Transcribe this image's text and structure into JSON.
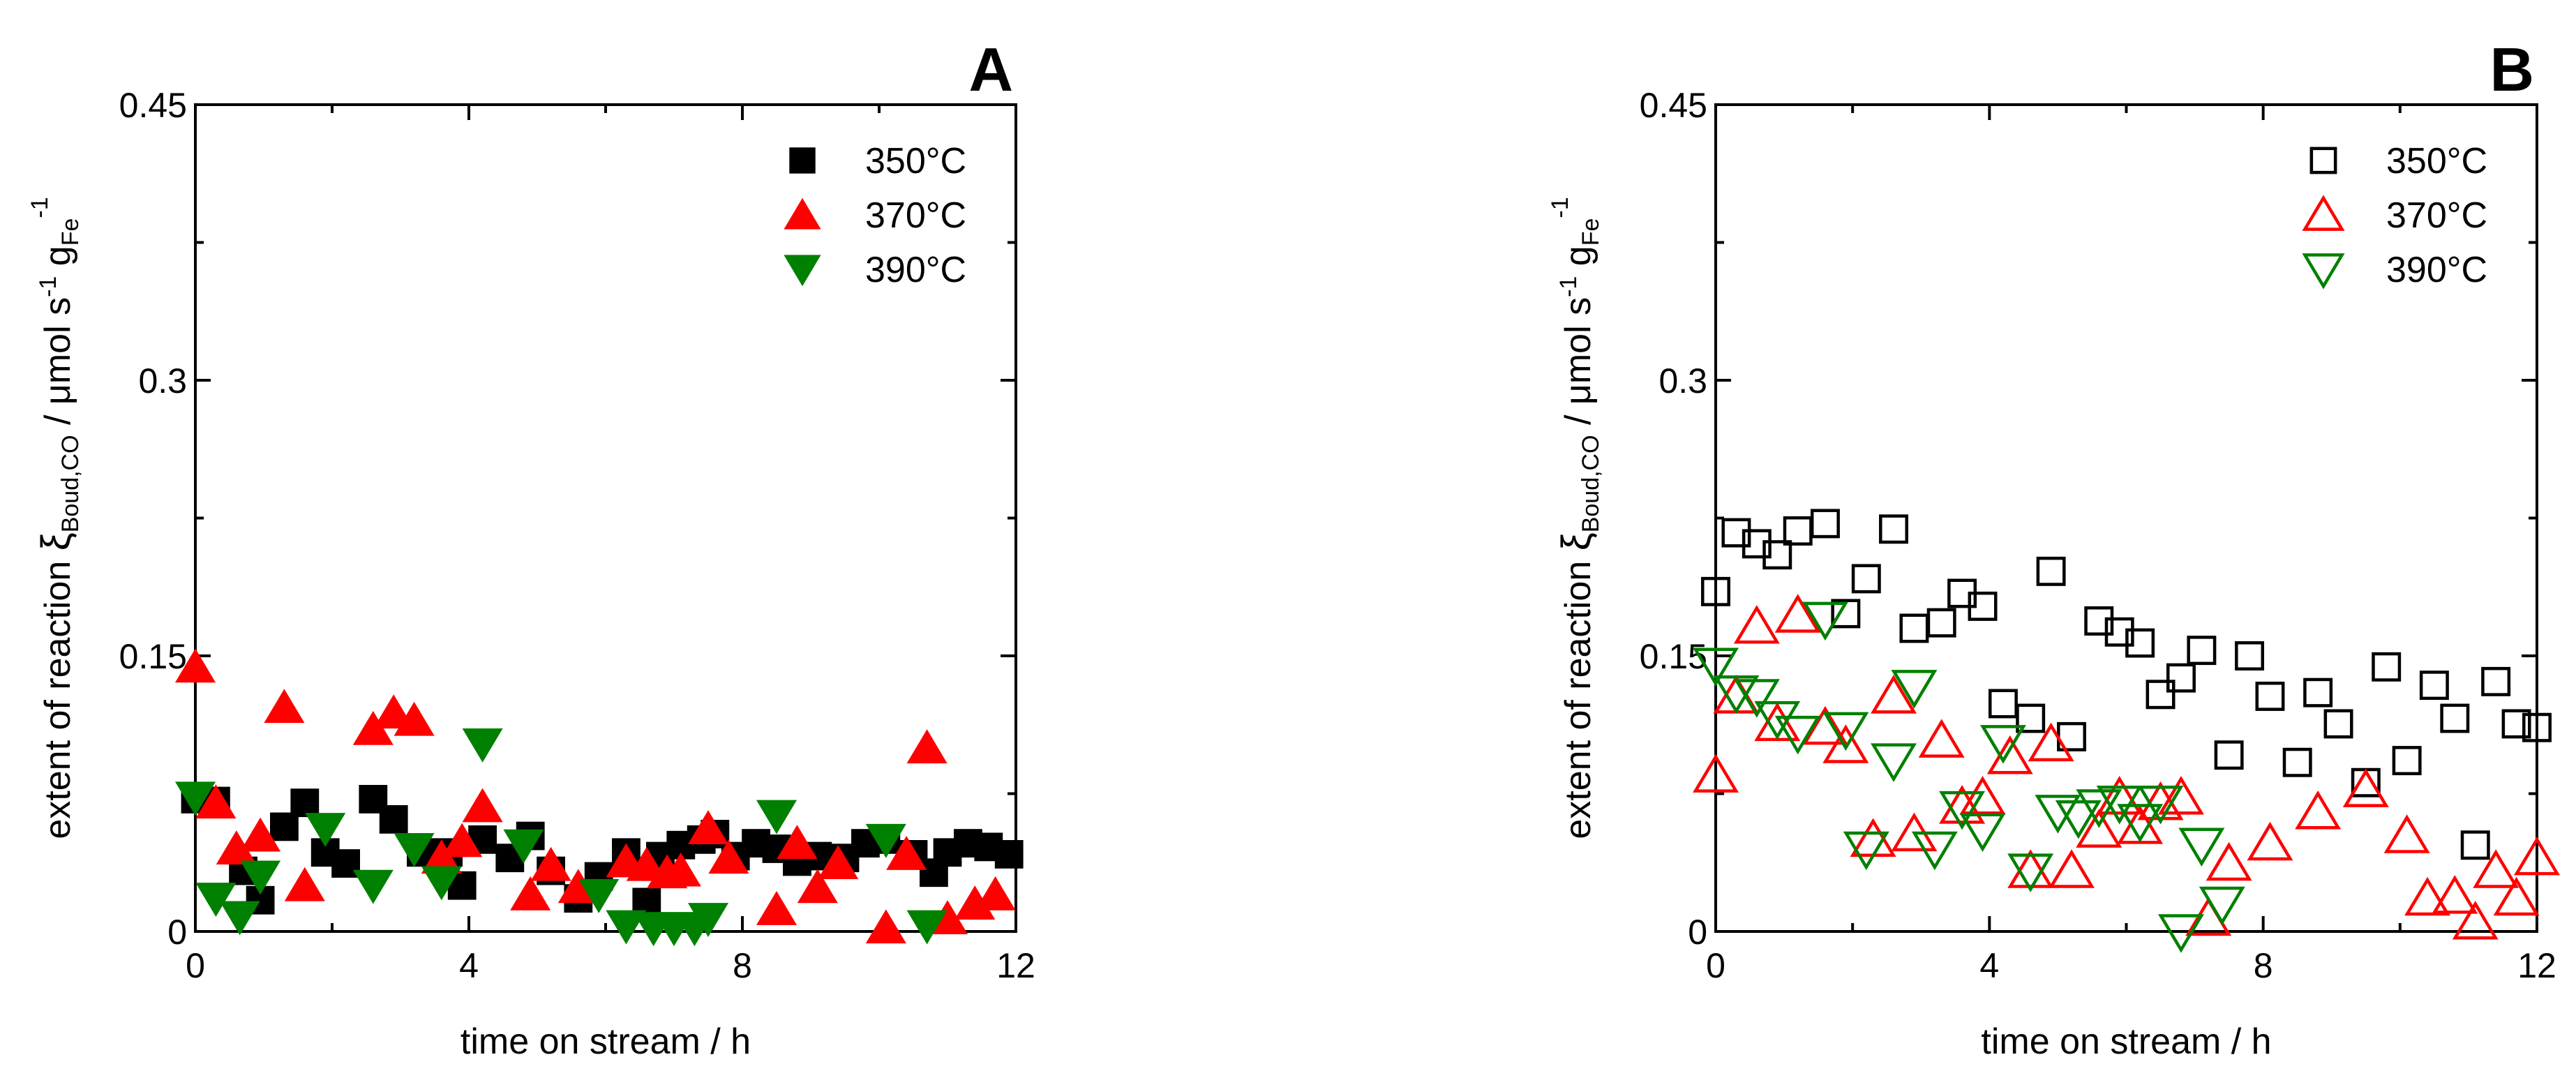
{
  "chart_data": [
    {
      "type": "scatter",
      "panel_label": "A",
      "xlabel": "time on stream / h",
      "ylabel": {
        "main": "extent of reaction ",
        "symbol": "ξ",
        "symbol_sub": "Boud,CO",
        "unit_a": " / μmol s",
        "unit_exp_a": "-1",
        "unit_b": " g",
        "unit_sub_b": "Fe",
        "unit_exp_b": "-1"
      },
      "xlim": [
        0,
        12
      ],
      "ylim": [
        0,
        0.45
      ],
      "xticks": [
        0,
        4,
        8,
        12
      ],
      "xticklabels": [
        "0",
        "4",
        "8",
        "12"
      ],
      "yticks": [
        0,
        0.15,
        0.3,
        0.45
      ],
      "yticklabels": [
        "0",
        "0.15",
        "0.3",
        "0.45"
      ],
      "legend_position": "top-right",
      "filled": true,
      "series": [
        {
          "name": "350°C",
          "marker": "square",
          "color": "#000000",
          "points": [
            [
              0,
              0.072
            ],
            [
              0.3,
              0.071
            ],
            [
              0.7,
              0.033
            ],
            [
              0.95,
              0.017
            ],
            [
              1.3,
              0.057
            ],
            [
              1.6,
              0.07
            ],
            [
              1.9,
              0.043
            ],
            [
              2.2,
              0.037
            ],
            [
              2.6,
              0.072
            ],
            [
              2.9,
              0.061
            ],
            [
              3.3,
              0.043
            ],
            [
              3.7,
              0.043
            ],
            [
              3.9,
              0.025
            ],
            [
              4.2,
              0.05
            ],
            [
              4.6,
              0.04
            ],
            [
              4.9,
              0.052
            ],
            [
              5.2,
              0.033
            ],
            [
              5.6,
              0.018
            ],
            [
              5.9,
              0.03
            ],
            [
              6.3,
              0.043
            ],
            [
              6.6,
              0.016
            ],
            [
              6.8,
              0.041
            ],
            [
              7.1,
              0.047
            ],
            [
              7.4,
              0.05
            ],
            [
              7.6,
              0.053
            ],
            [
              7.9,
              0.041
            ],
            [
              8.2,
              0.048
            ],
            [
              8.5,
              0.045
            ],
            [
              8.8,
              0.038
            ],
            [
              9.1,
              0.041
            ],
            [
              9.5,
              0.04
            ],
            [
              9.8,
              0.048
            ],
            [
              10.1,
              0.05
            ],
            [
              10.5,
              0.042
            ],
            [
              10.8,
              0.032
            ],
            [
              11.0,
              0.043
            ],
            [
              11.3,
              0.048
            ],
            [
              11.6,
              0.046
            ],
            [
              11.9,
              0.042
            ]
          ]
        },
        {
          "name": "370°C",
          "marker": "triangle-up",
          "color": "#ff0000",
          "points": [
            [
              0,
              0.144
            ],
            [
              0.3,
              0.07
            ],
            [
              0.6,
              0.045
            ],
            [
              0.95,
              0.052
            ],
            [
              1.3,
              0.122
            ],
            [
              1.6,
              0.025
            ],
            [
              2.6,
              0.11
            ],
            [
              2.9,
              0.119
            ],
            [
              3.2,
              0.115
            ],
            [
              3.6,
              0.04
            ],
            [
              3.9,
              0.049
            ],
            [
              4.2,
              0.068
            ],
            [
              4.9,
              0.02
            ],
            [
              5.2,
              0.036
            ],
            [
              5.6,
              0.024
            ],
            [
              6.3,
              0.038
            ],
            [
              6.6,
              0.036
            ],
            [
              6.9,
              0.032
            ],
            [
              7.1,
              0.033
            ],
            [
              7.5,
              0.056
            ],
            [
              7.8,
              0.04
            ],
            [
              8.5,
              0.012
            ],
            [
              8.8,
              0.048
            ],
            [
              9.1,
              0.024
            ],
            [
              9.4,
              0.037
            ],
            [
              10.1,
              0.002
            ],
            [
              10.4,
              0.042
            ],
            [
              10.7,
              0.1
            ],
            [
              11.0,
              0.007
            ],
            [
              11.4,
              0.015
            ],
            [
              11.7,
              0.02
            ]
          ]
        },
        {
          "name": "390°C",
          "marker": "triangle-down",
          "color": "#008000",
          "points": [
            [
              0,
              0.073
            ],
            [
              0.3,
              0.018
            ],
            [
              0.65,
              0.008
            ],
            [
              0.95,
              0.03
            ],
            [
              1.9,
              0.056
            ],
            [
              2.6,
              0.025
            ],
            [
              3.2,
              0.045
            ],
            [
              3.6,
              0.027
            ],
            [
              4.2,
              0.102
            ],
            [
              4.8,
              0.047
            ],
            [
              5.9,
              0.02
            ],
            [
              6.3,
              0.003
            ],
            [
              6.7,
              0.002
            ],
            [
              7.0,
              0.002
            ],
            [
              7.3,
              0.002
            ],
            [
              7.5,
              0.007
            ],
            [
              8.5,
              0.063
            ],
            [
              10.1,
              0.05
            ],
            [
              10.7,
              0.003
            ]
          ]
        }
      ]
    },
    {
      "type": "scatter",
      "panel_label": "B",
      "xlabel": "time on stream / h",
      "ylabel": {
        "main": "extent of reaction ",
        "symbol": "ξ",
        "symbol_sub": "Boud,CO",
        "unit_a": " / μmol s",
        "unit_exp_a": "-1",
        "unit_b": " g",
        "unit_sub_b": "Fe",
        "unit_exp_b": "-1"
      },
      "xlim": [
        0,
        12
      ],
      "ylim": [
        0,
        0.45
      ],
      "xticks": [
        0,
        4,
        8,
        12
      ],
      "xticklabels": [
        "0",
        "4",
        "8",
        "12"
      ],
      "yticks": [
        0,
        0.15,
        0.3,
        0.45
      ],
      "yticklabels": [
        "0",
        "0.15",
        "0.3",
        "0.45"
      ],
      "legend_position": "top-right",
      "filled": false,
      "series": [
        {
          "name": "350°C",
          "marker": "square",
          "color": "#000000",
          "points": [
            [
              0,
              0.185
            ],
            [
              0.3,
              0.217
            ],
            [
              0.6,
              0.211
            ],
            [
              0.9,
              0.205
            ],
            [
              1.2,
              0.218
            ],
            [
              1.6,
              0.222
            ],
            [
              1.9,
              0.173
            ],
            [
              2.2,
              0.192
            ],
            [
              2.6,
              0.219
            ],
            [
              2.9,
              0.165
            ],
            [
              3.3,
              0.168
            ],
            [
              3.6,
              0.184
            ],
            [
              3.9,
              0.177
            ],
            [
              4.2,
              0.124
            ],
            [
              4.6,
              0.116
            ],
            [
              4.9,
              0.196
            ],
            [
              5.2,
              0.106
            ],
            [
              5.6,
              0.169
            ],
            [
              5.9,
              0.163
            ],
            [
              6.2,
              0.157
            ],
            [
              6.5,
              0.129
            ],
            [
              6.8,
              0.138
            ],
            [
              7.1,
              0.153
            ],
            [
              7.5,
              0.096
            ],
            [
              7.8,
              0.15
            ],
            [
              8.1,
              0.128
            ],
            [
              8.5,
              0.092
            ],
            [
              8.8,
              0.13
            ],
            [
              9.1,
              0.113
            ],
            [
              9.5,
              0.081
            ],
            [
              9.8,
              0.144
            ],
            [
              10.1,
              0.093
            ],
            [
              10.5,
              0.134
            ],
            [
              10.8,
              0.116
            ],
            [
              11.1,
              0.047
            ],
            [
              11.4,
              0.136
            ],
            [
              11.7,
              0.113
            ],
            [
              12.0,
              0.111
            ]
          ]
        },
        {
          "name": "370°C",
          "marker": "triangle-up",
          "color": "#ff0000",
          "points": [
            [
              0,
              0.085
            ],
            [
              0.3,
              0.128
            ],
            [
              0.6,
              0.166
            ],
            [
              0.9,
              0.113
            ],
            [
              1.2,
              0.172
            ],
            [
              1.6,
              0.111
            ],
            [
              1.9,
              0.101
            ],
            [
              2.3,
              0.05
            ],
            [
              2.6,
              0.128
            ],
            [
              2.9,
              0.053
            ],
            [
              3.3,
              0.104
            ],
            [
              3.6,
              0.068
            ],
            [
              3.9,
              0.073
            ],
            [
              4.3,
              0.095
            ],
            [
              4.6,
              0.033
            ],
            [
              4.9,
              0.102
            ],
            [
              5.2,
              0.033
            ],
            [
              5.6,
              0.055
            ],
            [
              5.9,
              0.073
            ],
            [
              6.2,
              0.057
            ],
            [
              6.5,
              0.07
            ],
            [
              6.8,
              0.073
            ],
            [
              7.2,
              0.007
            ],
            [
              7.5,
              0.037
            ],
            [
              8.1,
              0.048
            ],
            [
              8.8,
              0.065
            ],
            [
              9.5,
              0.077
            ],
            [
              10.1,
              0.052
            ],
            [
              10.4,
              0.018
            ],
            [
              10.8,
              0.019
            ],
            [
              11.1,
              0.005
            ],
            [
              11.4,
              0.033
            ],
            [
              11.7,
              0.018
            ],
            [
              12.0,
              0.04
            ]
          ]
        },
        {
          "name": "390°C",
          "marker": "triangle-down",
          "color": "#008000",
          "points": [
            [
              0,
              0.145
            ],
            [
              0.3,
              0.13
            ],
            [
              0.6,
              0.128
            ],
            [
              0.9,
              0.116
            ],
            [
              1.2,
              0.108
            ],
            [
              1.6,
              0.17
            ],
            [
              1.9,
              0.11
            ],
            [
              2.2,
              0.045
            ],
            [
              2.6,
              0.093
            ],
            [
              2.9,
              0.133
            ],
            [
              3.2,
              0.045
            ],
            [
              3.6,
              0.067
            ],
            [
              3.9,
              0.055
            ],
            [
              4.2,
              0.103
            ],
            [
              4.6,
              0.033
            ],
            [
              5.0,
              0.065
            ],
            [
              5.3,
              0.062
            ],
            [
              5.6,
              0.068
            ],
            [
              5.9,
              0.07
            ],
            [
              6.2,
              0.06
            ],
            [
              6.5,
              0.07
            ],
            [
              6.8,
              0.0
            ],
            [
              7.1,
              0.047
            ],
            [
              7.4,
              0.015
            ]
          ]
        }
      ]
    }
  ]
}
